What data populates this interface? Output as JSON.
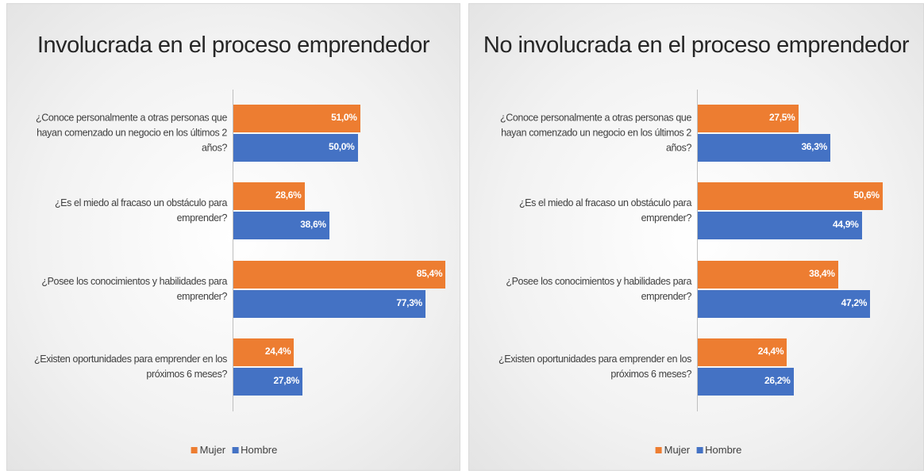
{
  "chart_data": [
    {
      "type": "bar",
      "orientation": "horizontal",
      "title": "Involucrada en el proceso emprendedor",
      "categories": [
        "¿Conoce personalmente a otras personas que hayan comenzado un negocio en los últimos 2 años?",
        "¿Es el miedo al fracaso  un obstáculo para emprender?",
        "¿Posee los conocimientos y habilidades para emprender?",
        "¿Existen oportunidades para emprender en los próximos 6 meses?"
      ],
      "series": [
        {
          "name": "Mujer",
          "color": "#ed7d31",
          "values": [
            51.0,
            28.6,
            85.4,
            24.4
          ],
          "value_labels": [
            "51,0%",
            "28,6%",
            "85,4%",
            "24,4%"
          ]
        },
        {
          "name": "Hombre",
          "color": "#4472c4",
          "values": [
            50.0,
            38.6,
            77.3,
            27.8
          ],
          "value_labels": [
            "50,0%",
            "38,6%",
            "77,3%",
            "27,8%"
          ]
        }
      ],
      "legend": "bottom"
    },
    {
      "type": "bar",
      "orientation": "horizontal",
      "title": "No involucrada en el proceso emprendedor",
      "categories": [
        "¿Conoce personalmente a otras personas que hayan comenzado un negocio en los últimos 2 años?",
        "¿Es el miedo al fracaso  un obstáculo para emprender?",
        "¿Posee los conocimientos y habilidades para emprender?",
        "¿Existen oportunidades para emprender en los próximos 6 meses?"
      ],
      "series": [
        {
          "name": "Mujer",
          "color": "#ed7d31",
          "values": [
            27.5,
            50.6,
            38.4,
            24.4
          ],
          "value_labels": [
            "27,5%",
            "50,6%",
            "38,4%",
            "24,4%"
          ]
        },
        {
          "name": "Hombre",
          "color": "#4472c4",
          "values": [
            36.3,
            44.9,
            47.2,
            26.2
          ],
          "value_labels": [
            "36,3%",
            "44,9%",
            "47,2%",
            "26,2%"
          ]
        }
      ],
      "legend": "bottom"
    }
  ]
}
